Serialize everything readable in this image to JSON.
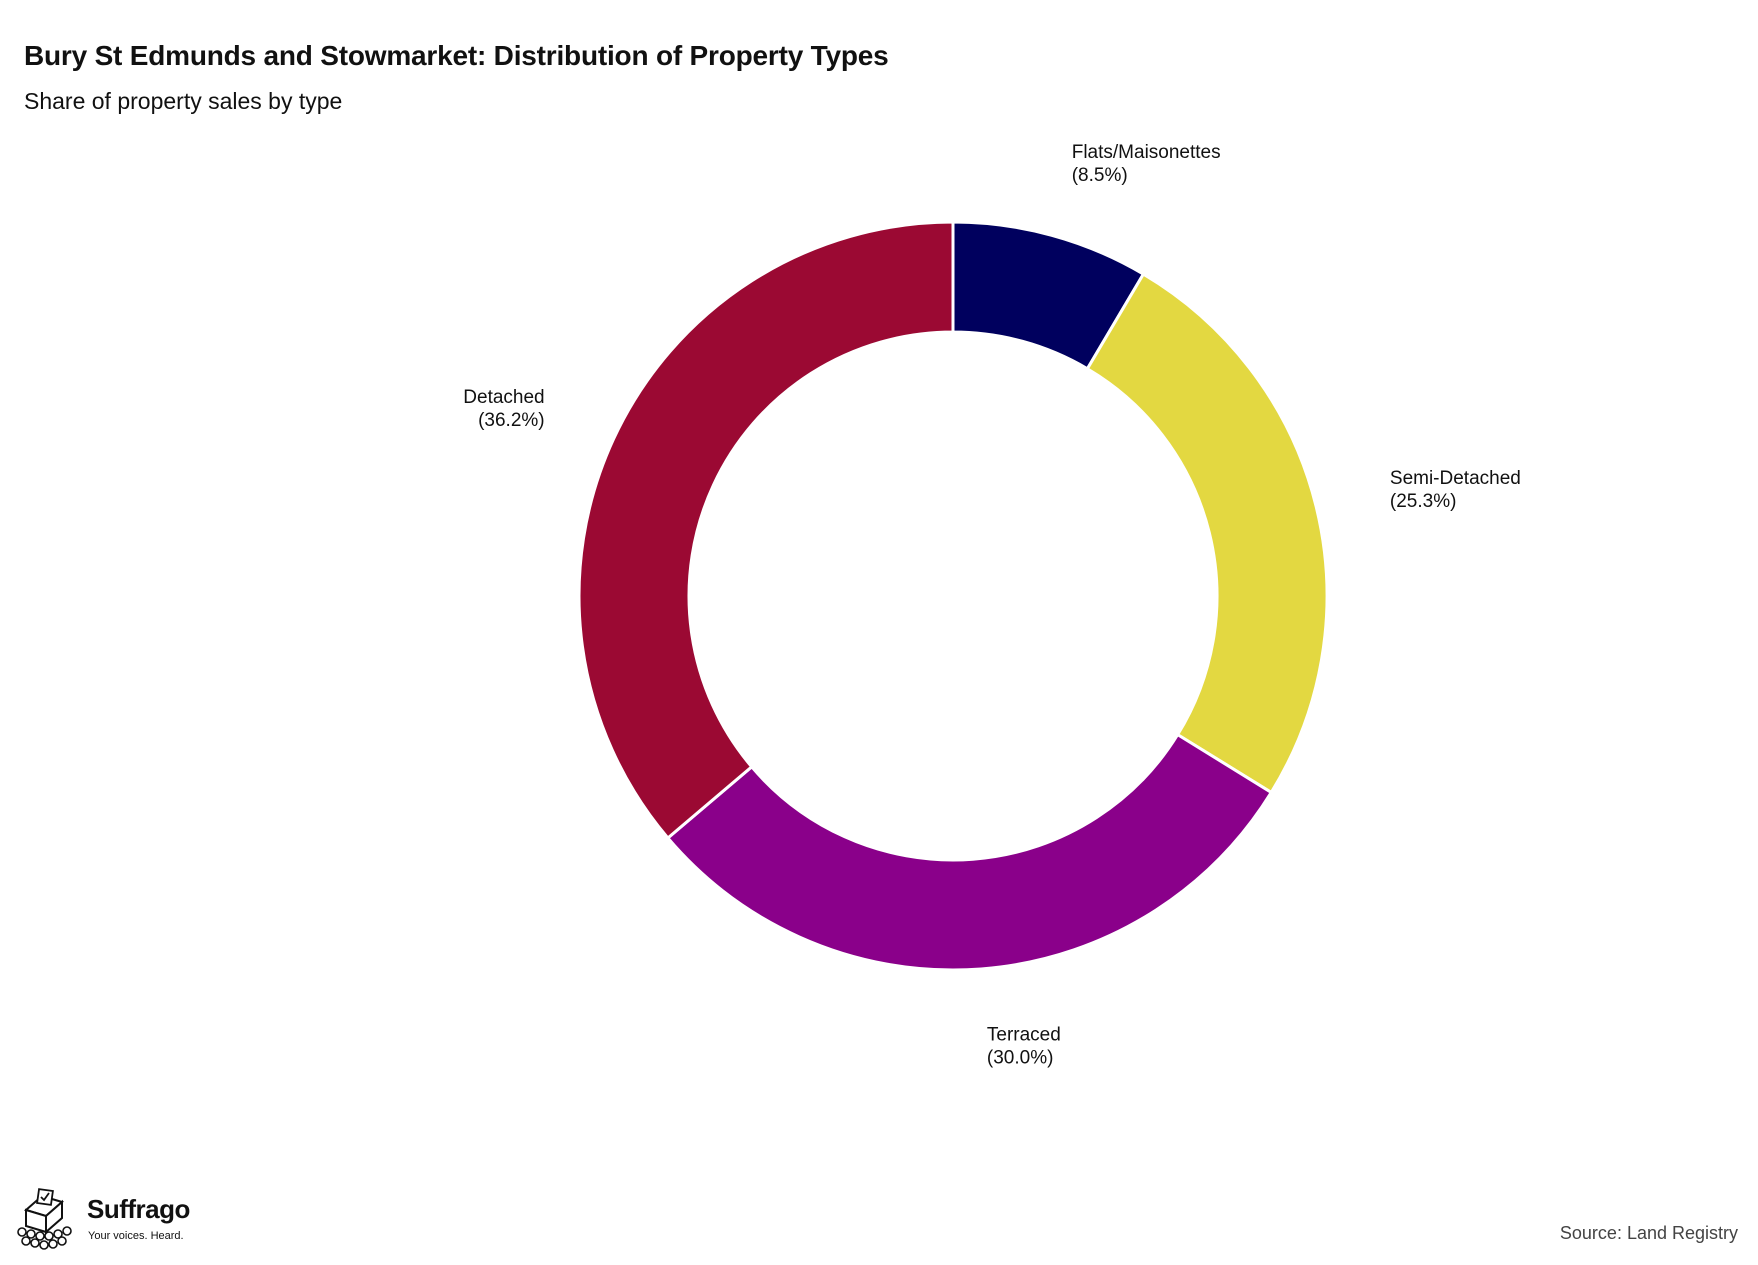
{
  "chart_data": {
    "type": "pie",
    "style": "donut",
    "title": "Bury St Edmunds and Stowmarket: Distribution of Property Types",
    "subtitle": "Share of property sales by type",
    "slices": [
      {
        "label": "Flats/Maisonettes",
        "value": 8.5,
        "value_label": "(8.5%)",
        "color": "#00005e"
      },
      {
        "label": "Semi-Detached",
        "value": 25.3,
        "value_label": "(25.3%)",
        "color": "#e3d841"
      },
      {
        "label": "Terraced",
        "value": 30.0,
        "value_label": "(30.0%)",
        "color": "#8a008a"
      },
      {
        "label": "Detached",
        "value": 36.2,
        "value_label": "(36.2%)",
        "color": "#9b0933"
      }
    ],
    "legend": "none",
    "grid": false
  },
  "branding": {
    "name": "Suffrago",
    "tagline": "Your voices. Heard."
  },
  "source": "Source: Land Registry"
}
